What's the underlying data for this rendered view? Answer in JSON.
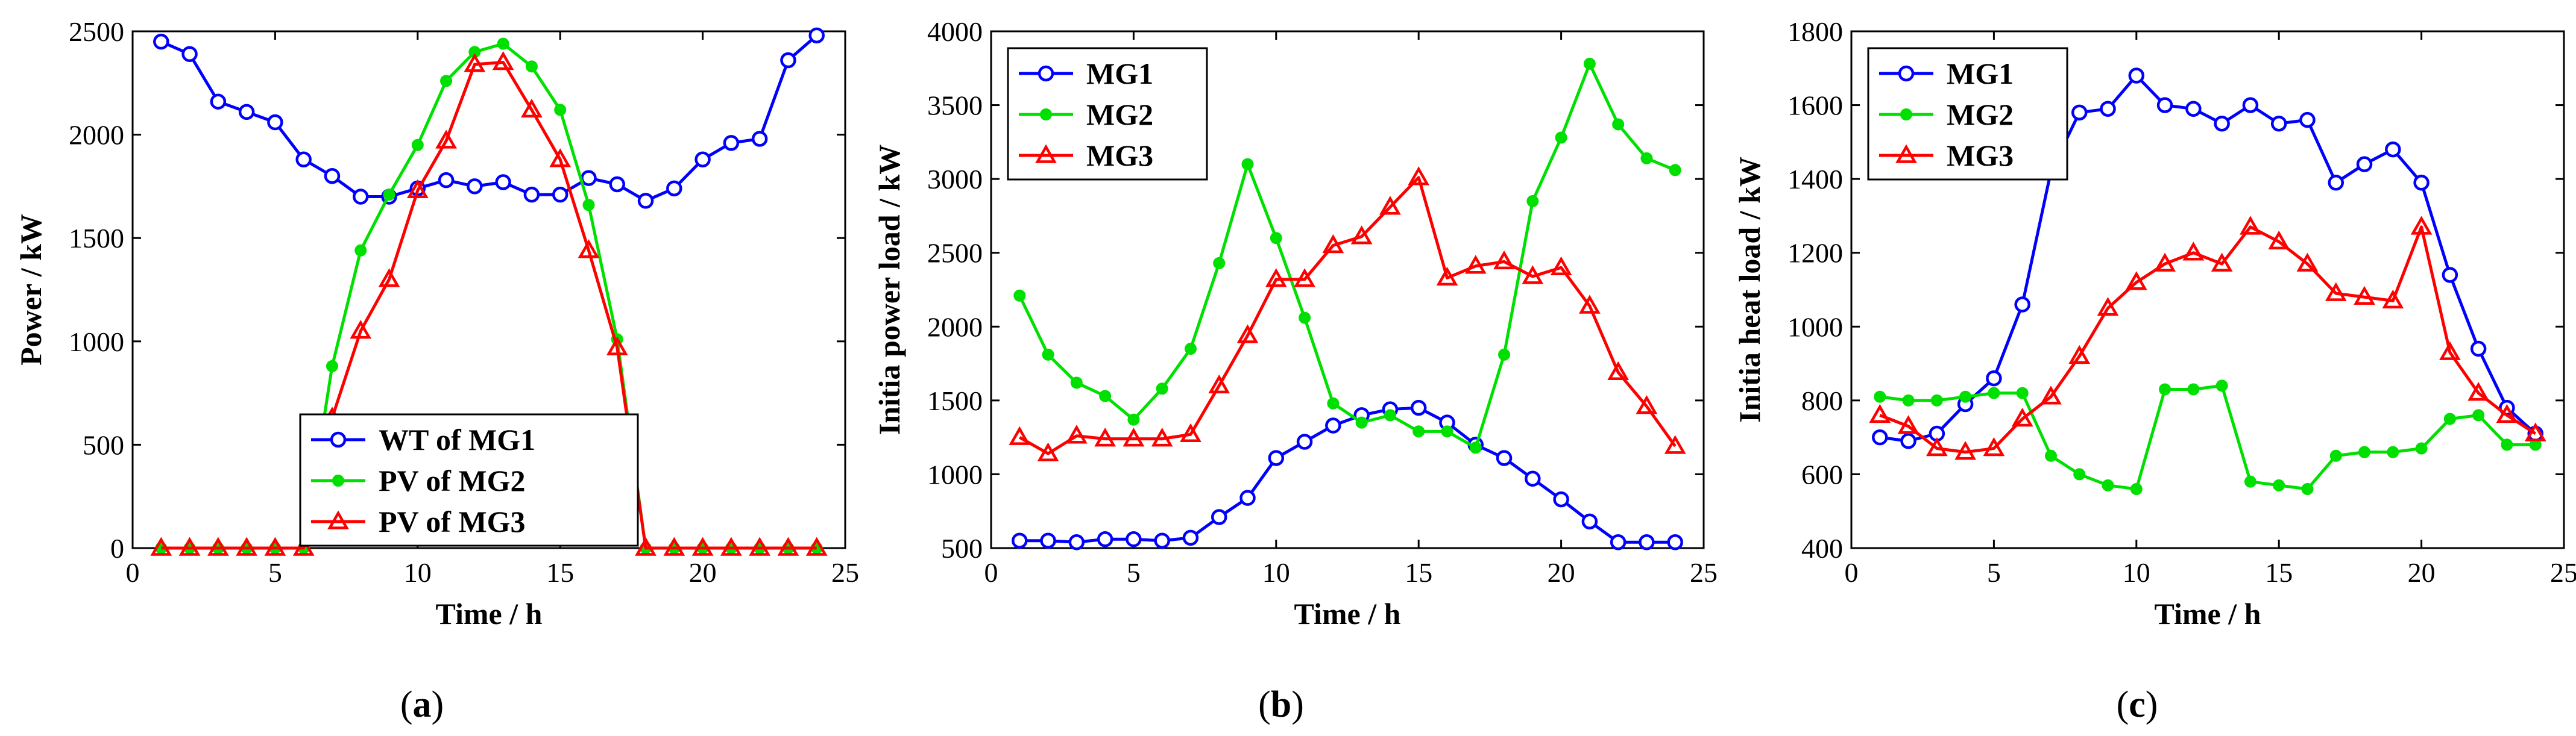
{
  "chart_data": [
    {
      "type": "line",
      "caption_letter": "a",
      "xlabel": "Time / h",
      "ylabel": "Power / kW",
      "xlim": [
        0,
        25
      ],
      "ylim": [
        0,
        2500
      ],
      "xticks": [
        0,
        5,
        10,
        15,
        20,
        25
      ],
      "yticks": [
        0,
        500,
        1000,
        1500,
        2000,
        2500
      ],
      "legend_position": "bottom-center",
      "x": [
        1,
        2,
        3,
        4,
        5,
        6,
        7,
        8,
        9,
        10,
        11,
        12,
        13,
        14,
        15,
        16,
        17,
        18,
        19,
        20,
        21,
        22,
        23,
        24
      ],
      "series": [
        {
          "name": "WT of MG1",
          "color": "#0000ff",
          "marker": "circle",
          "values": [
            2450,
            2390,
            2160,
            2110,
            2060,
            1880,
            1800,
            1700,
            1700,
            1740,
            1780,
            1750,
            1770,
            1710,
            1710,
            1790,
            1760,
            1680,
            1740,
            1880,
            1960,
            1980,
            2360,
            2480
          ]
        },
        {
          "name": "PV of MG2",
          "color": "#00e000",
          "marker": "dot",
          "values": [
            0,
            0,
            0,
            0,
            0,
            0,
            880,
            1440,
            1710,
            1950,
            2260,
            2400,
            2440,
            2330,
            2120,
            1660,
            1010,
            0,
            0,
            0,
            0,
            0,
            0,
            0
          ]
        },
        {
          "name": "PV of MG3",
          "color": "#ff0000",
          "marker": "triangle",
          "values": [
            0,
            0,
            0,
            0,
            0,
            0,
            630,
            1050,
            1300,
            1730,
            1970,
            2340,
            2350,
            2120,
            1880,
            1440,
            970,
            0,
            0,
            0,
            0,
            0,
            0,
            0
          ]
        }
      ]
    },
    {
      "type": "line",
      "caption_letter": "b",
      "xlabel": "Time / h",
      "ylabel": "Initia power load / kW",
      "xlim": [
        0,
        25
      ],
      "ylim": [
        500,
        4000
      ],
      "xticks": [
        0,
        5,
        10,
        15,
        20,
        25
      ],
      "yticks": [
        500,
        1000,
        1500,
        2000,
        2500,
        3000,
        3500,
        4000
      ],
      "legend_position": "top-left",
      "x": [
        1,
        2,
        3,
        4,
        5,
        6,
        7,
        8,
        9,
        10,
        11,
        12,
        13,
        14,
        15,
        16,
        17,
        18,
        19,
        20,
        21,
        22,
        23,
        24
      ],
      "series": [
        {
          "name": "MG1",
          "color": "#0000ff",
          "marker": "circle",
          "values": [
            550,
            550,
            540,
            560,
            560,
            550,
            570,
            710,
            840,
            1110,
            1220,
            1330,
            1400,
            1440,
            1450,
            1350,
            1200,
            1110,
            970,
            830,
            680,
            540,
            540,
            540
          ]
        },
        {
          "name": "MG2",
          "color": "#00e000",
          "marker": "dot",
          "values": [
            2210,
            1810,
            1620,
            1530,
            1370,
            1580,
            1850,
            2430,
            3100,
            2600,
            2060,
            1480,
            1350,
            1400,
            1290,
            1290,
            1180,
            1810,
            2850,
            3280,
            3780,
            3370,
            3140,
            3060
          ]
        },
        {
          "name": "MG3",
          "color": "#ff0000",
          "marker": "triangle",
          "values": [
            1250,
            1140,
            1260,
            1240,
            1240,
            1240,
            1270,
            1600,
            1940,
            2320,
            2320,
            2550,
            2610,
            2810,
            3010,
            2330,
            2410,
            2440,
            2340,
            2400,
            2140,
            1690,
            1460,
            1190
          ]
        }
      ]
    },
    {
      "type": "line",
      "caption_letter": "c",
      "xlabel": "Time / h",
      "ylabel": "Initia heat load / kW",
      "xlim": [
        0,
        25
      ],
      "ylim": [
        400,
        1800
      ],
      "xticks": [
        0,
        5,
        10,
        15,
        20,
        25
      ],
      "yticks": [
        400,
        600,
        800,
        1000,
        1200,
        1400,
        1600,
        1800
      ],
      "legend_position": "top-left",
      "x": [
        1,
        2,
        3,
        4,
        5,
        6,
        7,
        8,
        9,
        10,
        11,
        12,
        13,
        14,
        15,
        16,
        17,
        18,
        19,
        20,
        21,
        22,
        23,
        24
      ],
      "series": [
        {
          "name": "MG1",
          "color": "#0000ff",
          "marker": "circle",
          "values": [
            700,
            690,
            710,
            790,
            860,
            1060,
            1420,
            1580,
            1590,
            1680,
            1600,
            1590,
            1550,
            1600,
            1550,
            1560,
            1390,
            1440,
            1480,
            1390,
            1140,
            940,
            780,
            710
          ]
        },
        {
          "name": "MG2",
          "color": "#00e000",
          "marker": "dot",
          "values": [
            810,
            800,
            800,
            810,
            820,
            820,
            650,
            600,
            570,
            560,
            830,
            830,
            840,
            580,
            570,
            560,
            650,
            660,
            660,
            670,
            750,
            760,
            680,
            680
          ]
        },
        {
          "name": "MG3",
          "color": "#ff0000",
          "marker": "triangle",
          "values": [
            760,
            730,
            670,
            660,
            670,
            750,
            810,
            920,
            1050,
            1120,
            1170,
            1200,
            1170,
            1270,
            1230,
            1170,
            1090,
            1080,
            1070,
            1270,
            930,
            820,
            760,
            710
          ]
        }
      ]
    }
  ]
}
